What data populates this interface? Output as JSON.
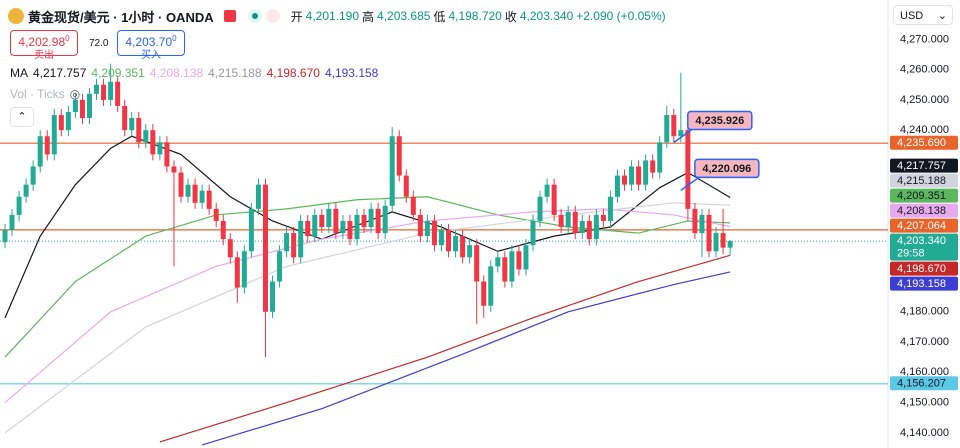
{
  "header": {
    "title": "黄金现货/美元 · 1小时 · OANDA",
    "open_label": "开",
    "open": "4,201.190",
    "high_label": "高",
    "high": "4,203.685",
    "low_label": "低",
    "low": "4,198.720",
    "close_label": "收",
    "close": "4,203.340",
    "change": "+2.090 (+0.05%)",
    "currency": "USD",
    "sell": {
      "price": "4,202.98",
      "sup": "0",
      "label": "卖出"
    },
    "spread": "72.0",
    "buy": {
      "price": "4,203.70",
      "sup": "0",
      "label": "买入"
    }
  },
  "chart_data": {
    "type": "candlestick",
    "ma_title": "MA",
    "volume_legend": "Vol · Ticks",
    "up_color": "#22ab94",
    "down_color": "#f23645",
    "ylim": [
      4135,
      4283
    ],
    "yticks": [
      {
        "value": 4270,
        "label": "4,270.000"
      },
      {
        "value": 4260,
        "label": "4,260.000"
      },
      {
        "value": 4250,
        "label": "4,250.000"
      },
      {
        "value": 4240,
        "label": "4,240.000"
      },
      {
        "value": 4180,
        "label": "4,180.000"
      },
      {
        "value": 4170,
        "label": "4,170.000"
      },
      {
        "value": 4160,
        "label": "4,160.000"
      },
      {
        "value": 4150,
        "label": "4,150.000"
      },
      {
        "value": 4140,
        "label": "4,140.000"
      }
    ],
    "open": [
      4203,
      4207,
      4212,
      4218,
      4222,
      4228,
      4238,
      4232,
      4245,
      4240,
      4246,
      4250,
      4244,
      4252,
      4255,
      4250,
      4256,
      4248,
      4240,
      4244,
      4236,
      4240,
      4232,
      4236,
      4228,
      4226,
      4218,
      4222,
      4216,
      4220,
      4214,
      4210,
      4204,
      4198,
      4188,
      4200,
      4214,
      4222,
      4180,
      4190,
      4200,
      4206,
      4198,
      4210,
      4205,
      4212,
      4208,
      4214,
      4206,
      4210,
      4204,
      4212,
      4208,
      4214,
      4206,
      4215,
      4238,
      4225,
      4218,
      4212,
      4205,
      4210,
      4202,
      4207,
      4200,
      4205,
      4198,
      4202,
      4190,
      4182,
      4195,
      4198,
      4190,
      4200,
      4194,
      4202,
      4210,
      4218,
      4222,
      4212,
      4208,
      4213,
      4206,
      4210,
      4204,
      4212,
      4210,
      4218,
      4225,
      4222,
      4228,
      4222,
      4230,
      4226,
      4236,
      4245,
      4238,
      4240,
      4214,
      4206,
      4212,
      4200,
      4206,
      4201.19
    ],
    "high": [
      4209,
      4214,
      4220,
      4224,
      4230,
      4240,
      4240,
      4247,
      4247,
      4248,
      4252,
      4252,
      4254,
      4257,
      4257,
      4262,
      4258,
      4250,
      4246,
      4246,
      4242,
      4242,
      4238,
      4238,
      4230,
      4228,
      4224,
      4224,
      4222,
      4222,
      4216,
      4212,
      4206,
      4200,
      4202,
      4216,
      4224,
      4224,
      4192,
      4202,
      4208,
      4208,
      4212,
      4212,
      4214,
      4214,
      4216,
      4216,
      4212,
      4212,
      4214,
      4214,
      4216,
      4216,
      4217,
      4241,
      4240,
      4227,
      4220,
      4214,
      4212,
      4212,
      4209,
      4209,
      4207,
      4207,
      4204,
      4204,
      4192,
      4197,
      4200,
      4200,
      4202,
      4202,
      4204,
      4212,
      4220,
      4224,
      4224,
      4214,
      4215,
      4215,
      4212,
      4212,
      4214,
      4214,
      4220,
      4227,
      4227,
      4230,
      4230,
      4232,
      4232,
      4238,
      4248,
      4247,
      4259,
      4242,
      4216,
      4214,
      4214,
      4208,
      4214,
      4203.685
    ],
    "low": [
      4201,
      4205,
      4210,
      4216,
      4220,
      4226,
      4230,
      4230,
      4238,
      4238,
      4244,
      4242,
      4242,
      4250,
      4248,
      4248,
      4246,
      4238,
      4238,
      4234,
      4234,
      4230,
      4230,
      4226,
      4195,
      4216,
      4216,
      4214,
      4214,
      4212,
      4208,
      4202,
      4196,
      4183,
      4186,
      4198,
      4212,
      4165,
      4178,
      4188,
      4198,
      4196,
      4196,
      4203,
      4203,
      4206,
      4206,
      4204,
      4204,
      4202,
      4202,
      4206,
      4206,
      4204,
      4204,
      4213,
      4223,
      4216,
      4210,
      4203,
      4203,
      4200,
      4200,
      4198,
      4198,
      4196,
      4196,
      4176,
      4178,
      4180,
      4193,
      4188,
      4188,
      4192,
      4192,
      4200,
      4208,
      4216,
      4210,
      4206,
      4206,
      4204,
      4204,
      4202,
      4202,
      4208,
      4208,
      4216,
      4220,
      4220,
      4220,
      4220,
      4224,
      4224,
      4234,
      4236,
      4236,
      4210,
      4204,
      4198,
      4198,
      4198,
      4199,
      4198.72
    ],
    "close": [
      4207,
      4212,
      4218,
      4222,
      4228,
      4238,
      4232,
      4245,
      4240,
      4246,
      4250,
      4244,
      4252,
      4255,
      4250,
      4256,
      4248,
      4240,
      4244,
      4236,
      4240,
      4232,
      4236,
      4228,
      4226,
      4218,
      4222,
      4216,
      4220,
      4214,
      4210,
      4204,
      4198,
      4188,
      4200,
      4214,
      4222,
      4180,
      4190,
      4200,
      4206,
      4198,
      4210,
      4205,
      4212,
      4208,
      4214,
      4206,
      4210,
      4204,
      4212,
      4208,
      4214,
      4206,
      4215,
      4238,
      4225,
      4218,
      4212,
      4205,
      4210,
      4202,
      4207,
      4200,
      4205,
      4198,
      4202,
      4190,
      4182,
      4195,
      4198,
      4190,
      4200,
      4194,
      4202,
      4210,
      4218,
      4222,
      4212,
      4208,
      4213,
      4206,
      4210,
      4204,
      4212,
      4210,
      4218,
      4225,
      4222,
      4228,
      4222,
      4230,
      4226,
      4236,
      4245,
      4238,
      4240,
      4214,
      4206,
      4212,
      4200,
      4206,
      4201.19,
      4203.34
    ],
    "current": {
      "value": 4203.34,
      "label": "4,203.340",
      "countdown": "29:58",
      "color": "#22ab94"
    },
    "ma": [
      {
        "color": "#131722",
        "label": "4,217.757",
        "label_text": "#ffffff",
        "x": [
          0,
          5,
          10,
          15,
          18,
          25,
          32,
          38,
          45,
          55,
          62,
          70,
          78,
          86,
          93,
          97,
          103
        ],
        "values": [
          4178,
          4205,
          4222,
          4234,
          4238,
          4232,
          4218,
          4210,
          4204,
          4213,
          4208,
          4200,
          4205,
          4208,
          4221,
          4226,
          4217.757
        ]
      },
      {
        "color": "#5cb85c",
        "label": "4,209.351",
        "label_text": "#131722",
        "x": [
          0,
          10,
          20,
          30,
          40,
          50,
          60,
          70,
          80,
          90,
          97,
          103
        ],
        "values": [
          4165,
          4190,
          4205,
          4212,
          4214,
          4217,
          4218,
          4212,
          4208,
          4206,
          4210,
          4209.351
        ]
      },
      {
        "color": "#e8a9ee",
        "label": "4,208.138",
        "label_text": "#131722",
        "x": [
          0,
          15,
          30,
          45,
          60,
          75,
          85,
          95,
          103
        ],
        "values": [
          4150,
          4180,
          4195,
          4204,
          4210,
          4213,
          4214,
          4212,
          4208.138
        ]
      },
      {
        "color": "#d1d4dc",
        "label": "4,215.188",
        "label_text": "#131722",
        "x": [
          0,
          20,
          40,
          60,
          80,
          95,
          103
        ],
        "values": [
          4140,
          4175,
          4195,
          4206,
          4212,
          4216,
          4215.188
        ]
      },
      {
        "color": "#c62828",
        "label": "4,198.670",
        "label_text": "#ffffff",
        "x": [
          22,
          40,
          60,
          75,
          90,
          103
        ],
        "values": [
          4137,
          4150,
          4165,
          4178,
          4190,
          4198.67
        ]
      },
      {
        "color": "#3d3dd6",
        "label": "4,193.158",
        "label_text": "#ffffff",
        "x": [
          28,
          45,
          65,
          80,
          95,
          103
        ],
        "values": [
          4136,
          4148,
          4166,
          4180,
          4189,
          4193.158
        ]
      }
    ],
    "levels": [
      {
        "value": 4235.69,
        "label": "4,235.690",
        "color": "#e8642b",
        "label_text": "#ffffff"
      },
      {
        "value": 4207.064,
        "label": "4,207.064",
        "color": "#e8642b",
        "label_text": "#ffffff"
      },
      {
        "value": 4156.207,
        "label": "4,156.207",
        "color": "#5bc8e6",
        "label_text": "#131722"
      }
    ],
    "annotations": [
      {
        "x": 95,
        "value": 4235.926,
        "label": "4,235.926"
      },
      {
        "x": 96,
        "value": 4220.096,
        "label": "4,220.096"
      }
    ]
  }
}
